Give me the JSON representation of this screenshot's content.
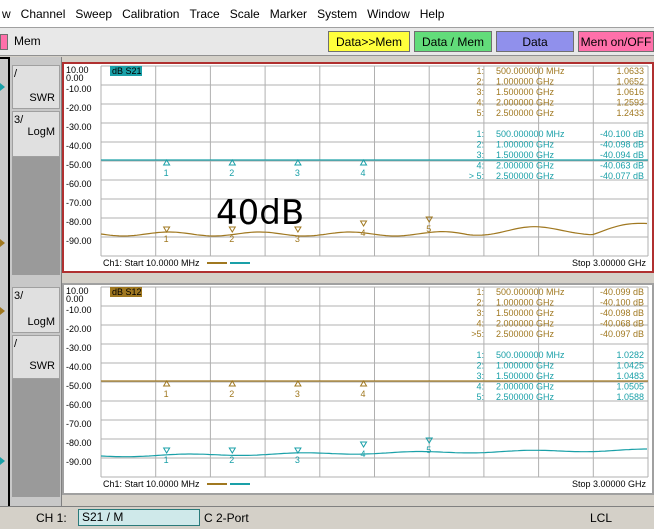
{
  "menu": [
    "w",
    "Channel",
    "Sweep",
    "Calibration",
    "Trace",
    "Scale",
    "Marker",
    "System",
    "Window",
    "Help"
  ],
  "toolbar": {
    "mem_label": "Mem",
    "buttons": [
      "Data>>Mem",
      "Data / Mem",
      "Data",
      "Mem on/OFF"
    ]
  },
  "left_panel": {
    "ch1": {
      "btn1_top": "/",
      "btn1_label": "SWR",
      "btn2_top": "3/",
      "btn2_label": "LogM"
    },
    "ch2": {
      "btn1_top": "3/",
      "btn1_label": "LogM",
      "btn2_top": "/",
      "btn2_label": "SWR"
    }
  },
  "y_labels": [
    "10.00\n0.00",
    "-10.00",
    "-20.00",
    "-30.00",
    "-40.00",
    "-50.00",
    "-60.00",
    "-70.00",
    "-80.00",
    "-90.00"
  ],
  "annotation": "40dB",
  "colors": {
    "ch1_trace": "#1aa0a8",
    "ch2_trace": "#a07820",
    "active_border": "#b03030",
    "grid": "#b0b0b0"
  },
  "ch1": {
    "title": "dB S21",
    "start_label": "Ch1: Start  10.0000 MHz",
    "stop_label": "Stop  3.00000 GHz",
    "markers_a": [
      {
        "id": "1:",
        "freq": "500.000000 MHz",
        "val": "1.0633"
      },
      {
        "id": "2:",
        "freq": "1.000000 GHz",
        "val": "1.0652"
      },
      {
        "id": "3:",
        "freq": "1.500000 GHz",
        "val": "1.0616"
      },
      {
        "id": "4:",
        "freq": "2.000000 GHz",
        "val": "1.2593"
      },
      {
        "id": "5:",
        "freq": "2.500000 GHz",
        "val": "1.2433"
      }
    ],
    "markers_b": [
      {
        "id": "1:",
        "freq": "500.000000 MHz",
        "val": "-40.100 dB"
      },
      {
        "id": "2:",
        "freq": "1.000000 GHz",
        "val": "-40.098 dB"
      },
      {
        "id": "3:",
        "freq": "1.500000 GHz",
        "val": "-40.094 dB"
      },
      {
        "id": "4:",
        "freq": "2.000000 GHz",
        "val": "-40.063 dB"
      },
      {
        "id": "> 5:",
        "freq": "2.500000 GHz",
        "val": "-40.077 dB"
      }
    ]
  },
  "ch2": {
    "title": "dB S12",
    "start_label": "Ch1: Start  10.0000 MHz",
    "stop_label": "Stop  3.00000 GHz",
    "markers_a": [
      {
        "id": "1:",
        "freq": "500.000000 MHz",
        "val": "-40.099 dB"
      },
      {
        "id": "2:",
        "freq": "1.000000 GHz",
        "val": "-40.100 dB"
      },
      {
        "id": "3:",
        "freq": "1.500000 GHz",
        "val": "-40.098 dB"
      },
      {
        "id": "4:",
        "freq": "2.000000 GHz",
        "val": "-40.068 dB"
      },
      {
        "id": ">5:",
        "freq": "2.500000 GHz",
        "val": "-40.097 dB"
      }
    ],
    "markers_b": [
      {
        "id": "1:",
        "freq": "500.000000 MHz",
        "val": "1.0282"
      },
      {
        "id": "2:",
        "freq": "1.000000 GHz",
        "val": "1.0425"
      },
      {
        "id": "3:",
        "freq": "1.500000 GHz",
        "val": "1.0483"
      },
      {
        "id": "4:",
        "freq": "2.000000 GHz",
        "val": "1.0505"
      },
      {
        "id": "5:",
        "freq": "2.500000 GHz",
        "val": "1.0588"
      }
    ]
  },
  "marker_numbers": [
    "1",
    "2",
    "3",
    "4",
    "5"
  ],
  "status": {
    "channel": "CH 1:",
    "trace": "S21 / M",
    "cal": "C  2-Port",
    "lcl": "LCL"
  }
}
